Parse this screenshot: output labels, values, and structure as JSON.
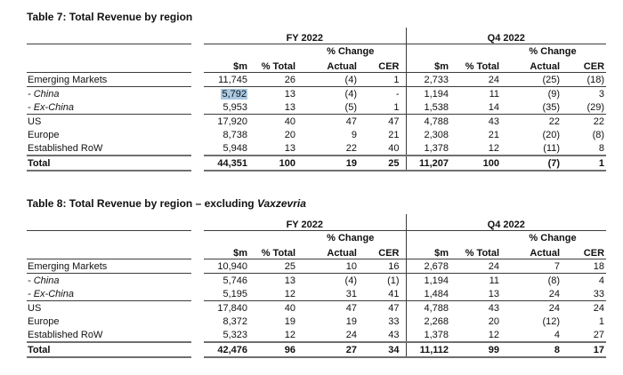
{
  "colors": {
    "highlight": "#a9c9e4",
    "text": "#111111",
    "rule": "#3c3c3c",
    "total_rule": "#6f6f6f"
  },
  "tables": [
    {
      "title": "Table 7: Total Revenue by region",
      "title_italic": "",
      "group_fy": "FY 2022",
      "group_q4": "Q4 2022",
      "pct_change": "% Change",
      "columns": [
        "$m",
        "% Total",
        "Actual",
        "CER"
      ],
      "rows": [
        {
          "label": "Emerging Markets",
          "italic": false,
          "sep_below": true,
          "fy": [
            "11,745",
            "26",
            "(4)",
            "1"
          ],
          "q4": [
            "2,733",
            "24",
            "(25)",
            "(18)"
          ]
        },
        {
          "label": "- China",
          "italic": true,
          "highlight_fy_col": 0,
          "fy": [
            "5,792",
            "13",
            "(4)",
            "-"
          ],
          "q4": [
            "1,194",
            "11",
            "(9)",
            "3"
          ]
        },
        {
          "label": "- Ex-China",
          "italic": true,
          "sep_below": true,
          "fy": [
            "5,953",
            "13",
            "(5)",
            "1"
          ],
          "q4": [
            "1,538",
            "14",
            "(35)",
            "(29)"
          ]
        },
        {
          "label": "US",
          "italic": false,
          "fy": [
            "17,920",
            "40",
            "47",
            "47"
          ],
          "q4": [
            "4,788",
            "43",
            "22",
            "22"
          ]
        },
        {
          "label": "Europe",
          "italic": false,
          "fy": [
            "8,738",
            "20",
            "9",
            "21"
          ],
          "q4": [
            "2,308",
            "21",
            "(20)",
            "(8)"
          ]
        },
        {
          "label": "Established RoW",
          "italic": false,
          "fy": [
            "5,948",
            "13",
            "22",
            "40"
          ],
          "q4": [
            "1,378",
            "12",
            "(11)",
            "8"
          ]
        }
      ],
      "total": {
        "label": "Total",
        "fy": [
          "44,351",
          "100",
          "19",
          "25"
        ],
        "q4": [
          "11,207",
          "100",
          "(7)",
          "1"
        ]
      }
    },
    {
      "title": "Table 8: Total Revenue by region – excluding ",
      "title_italic": "Vaxzevria",
      "group_fy": "FY 2022",
      "group_q4": "Q4 2022",
      "pct_change": "% Change",
      "columns": [
        "$m",
        "% Total",
        "Actual",
        "CER"
      ],
      "rows": [
        {
          "label": "Emerging Markets",
          "italic": false,
          "sep_below": true,
          "fy": [
            "10,940",
            "25",
            "10",
            "16"
          ],
          "q4": [
            "2,678",
            "24",
            "7",
            "18"
          ]
        },
        {
          "label": "- China",
          "italic": true,
          "fy": [
            "5,746",
            "13",
            "(4)",
            "(1)"
          ],
          "q4": [
            "1,194",
            "11",
            "(8)",
            "4"
          ]
        },
        {
          "label": "- Ex-China",
          "italic": true,
          "sep_below": true,
          "fy": [
            "5,195",
            "12",
            "31",
            "41"
          ],
          "q4": [
            "1,484",
            "13",
            "24",
            "33"
          ]
        },
        {
          "label": "US",
          "italic": false,
          "fy": [
            "17,840",
            "40",
            "47",
            "47"
          ],
          "q4": [
            "4,788",
            "43",
            "24",
            "24"
          ]
        },
        {
          "label": "Europe",
          "italic": false,
          "fy": [
            "8,372",
            "19",
            "19",
            "33"
          ],
          "q4": [
            "2,268",
            "20",
            "(12)",
            "1"
          ]
        },
        {
          "label": "Established RoW",
          "italic": false,
          "fy": [
            "5,323",
            "12",
            "24",
            "43"
          ],
          "q4": [
            "1,378",
            "12",
            "4",
            "27"
          ]
        }
      ],
      "total": {
        "label": "Total",
        "fy": [
          "42,476",
          "96",
          "27",
          "34"
        ],
        "q4": [
          "11,112",
          "99",
          "8",
          "17"
        ]
      }
    }
  ]
}
